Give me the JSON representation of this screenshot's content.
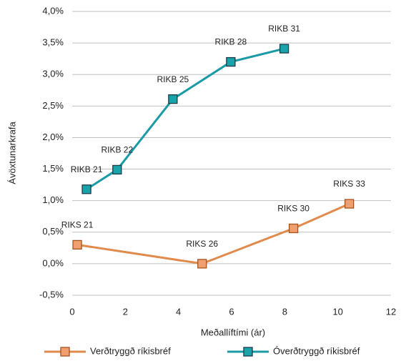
{
  "chart_data": {
    "type": "line",
    "xlabel": "Meðallíftími (ár)",
    "ylabel": "Ávöxtunarkrafa",
    "xlim": [
      0,
      12
    ],
    "xticks": [
      0,
      2,
      4,
      6,
      8,
      10,
      12
    ],
    "ylim": [
      -0.5,
      4.0
    ],
    "yticks": [
      {
        "value": -0.5,
        "label": "-0,5%"
      },
      {
        "value": 0,
        "label": "0,0%"
      },
      {
        "value": 0.5,
        "label": "0,5%"
      },
      {
        "value": 1.0,
        "label": "1,0%"
      },
      {
        "value": 1.5,
        "label": "1,5%"
      },
      {
        "value": 2.0,
        "label": "2,0%"
      },
      {
        "value": 2.5,
        "label": "2,5%"
      },
      {
        "value": 3.0,
        "label": "3,0%"
      },
      {
        "value": 3.5,
        "label": "3,5%"
      },
      {
        "value": 4.0,
        "label": "4,0%"
      }
    ],
    "grid": true,
    "legend": "bottom",
    "series": [
      {
        "name": "Verðtryggð ríkisbréf",
        "color": "#e08a4c",
        "marker_color": "#f0a070",
        "x": [
          0.19,
          4.89,
          8.33,
          10.43
        ],
        "values": [
          0.3,
          0.0,
          0.56,
          0.95
        ],
        "point_labels": [
          "RIKS 21",
          "RIKS 26",
          "RIKS 30",
          "RIKS 33"
        ]
      },
      {
        "name": "Óverðtryggð ríkisbréf",
        "color": "#1a9ba5",
        "marker_color": "#18a4aa",
        "x": [
          0.54,
          1.69,
          3.79,
          5.97,
          7.98
        ],
        "values": [
          1.18,
          1.49,
          2.61,
          3.2,
          3.41
        ],
        "point_labels": [
          "RIKB 21",
          "RIKB 22",
          "RIKB 25",
          "RIKB 28",
          "RIKB 31"
        ]
      }
    ]
  }
}
